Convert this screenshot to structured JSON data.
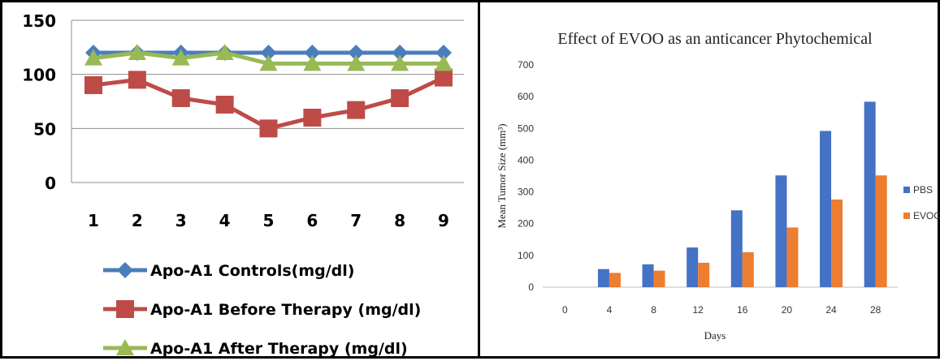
{
  "chart_data": [
    {
      "type": "line",
      "title": "",
      "xlabel": "",
      "ylabel": "",
      "x": [
        1,
        2,
        3,
        4,
        5,
        6,
        7,
        8,
        9
      ],
      "ylim": [
        0,
        150
      ],
      "yticks": [
        0,
        50,
        100,
        150
      ],
      "grid": true,
      "legend": "bottom",
      "series": [
        {
          "name": "Apo-A1 Controls(mg/dl)",
          "color": "#4a7ebb",
          "marker": "diamond",
          "values": [
            120,
            120,
            120,
            120,
            120,
            120,
            120,
            120,
            120
          ]
        },
        {
          "name": "Apo-A1 Before Therapy (mg/dl)",
          "color": "#be4b48",
          "marker": "square",
          "values": [
            90,
            95,
            78,
            72,
            50,
            60,
            67,
            78,
            97
          ]
        },
        {
          "name": "Apo-A1 After Therapy (mg/dl)",
          "color": "#98b954",
          "marker": "triangle",
          "values": [
            115,
            120,
            115,
            120,
            110,
            110,
            110,
            110,
            110
          ]
        }
      ]
    },
    {
      "type": "bar",
      "title": "Effect of EVOO as an anticancer Phytochemical",
      "xlabel": "Days",
      "ylabel": "Mean Tumor Size (mm³)",
      "categories": [
        "0",
        "4",
        "8",
        "12",
        "16",
        "20",
        "24",
        "28"
      ],
      "ylim": [
        0,
        700
      ],
      "yticks": [
        0,
        100,
        200,
        300,
        400,
        500,
        600,
        700
      ],
      "grid": false,
      "legend": "right",
      "series": [
        {
          "name": "PBS",
          "color": "#4472c4",
          "values": [
            0,
            57,
            72,
            125,
            242,
            352,
            492,
            584
          ]
        },
        {
          "name": "EVOO",
          "color": "#ed7d31",
          "values": [
            0,
            45,
            52,
            77,
            110,
            188,
            276,
            352
          ]
        }
      ]
    }
  ]
}
